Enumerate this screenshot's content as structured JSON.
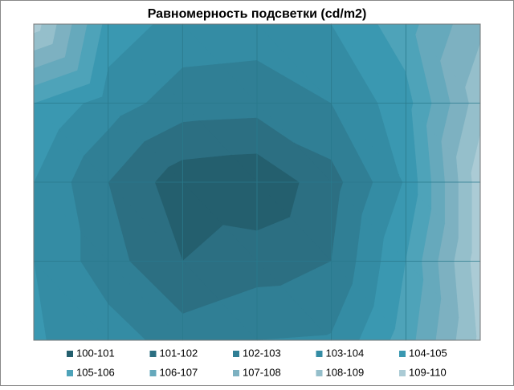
{
  "chart_data": {
    "type": "contour",
    "title": "Равномерность подсветки (cd/m2)",
    "z": [
      [
        109.5,
        104.6,
        103.6,
        103.5,
        104.0,
        105.6,
        107.8
      ],
      [
        105.0,
        103.5,
        102.5,
        102.4,
        103.0,
        104.6,
        108.6
      ],
      [
        104.0,
        102.0,
        100.4,
        100.2,
        101.6,
        104.1,
        109.6
      ],
      [
        104.0,
        102.4,
        101.0,
        101.5,
        102.0,
        105.0,
        109.6
      ],
      [
        104.1,
        103.5,
        102.5,
        103.0,
        103.1,
        105.5,
        109.2
      ]
    ],
    "series": [
      {
        "name": "100-101",
        "color": "#245f6e"
      },
      {
        "name": "101-102",
        "color": "#2c6f82"
      },
      {
        "name": "102-103",
        "color": "#307f95"
      },
      {
        "name": "103-104",
        "color": "#348ca4"
      },
      {
        "name": "104-105",
        "color": "#3a98b1"
      },
      {
        "name": "105-106",
        "color": "#4ea3b9"
      },
      {
        "name": "106-107",
        "color": "#66a9bc"
      },
      {
        "name": "107-108",
        "color": "#7db1c1"
      },
      {
        "name": "108-109",
        "color": "#95bfcb"
      },
      {
        "name": "109-110",
        "color": "#abcbd5"
      }
    ]
  }
}
